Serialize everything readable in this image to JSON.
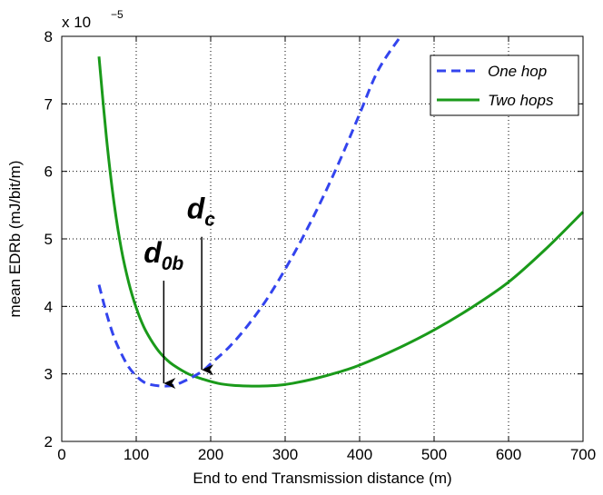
{
  "chart_data": {
    "type": "line",
    "xlabel": "End to end Transmission distance (m)",
    "ylabel": "mean EDRb (mJ/bit/m)",
    "y_scale_base": "x 10",
    "y_scale_exponent": "−5",
    "xlim": [
      0,
      700
    ],
    "ylim": [
      2,
      8
    ],
    "xticks": [
      0,
      100,
      200,
      300,
      400,
      500,
      600,
      700
    ],
    "yticks": [
      2,
      3,
      4,
      5,
      6,
      7,
      8
    ],
    "x_tick_labels": [
      "0",
      "100",
      "200",
      "300",
      "400",
      "500",
      "600",
      "700"
    ],
    "y_tick_labels": [
      "2",
      "3",
      "4",
      "5",
      "6",
      "7",
      "8"
    ],
    "grid": true,
    "legend_position": "top-right",
    "series": [
      {
        "name": "One hop",
        "color": "#3344ee",
        "style": "dashed",
        "x": [
          50,
          60,
          70,
          80,
          90,
          100,
          110,
          120,
          135,
          150,
          160,
          175,
          190,
          200,
          225,
          250,
          275,
          300,
          325,
          350,
          375,
          400,
          425,
          455
        ],
        "y": [
          4.32,
          3.9,
          3.55,
          3.3,
          3.1,
          2.97,
          2.88,
          2.84,
          2.82,
          2.83,
          2.87,
          2.95,
          3.05,
          3.15,
          3.4,
          3.72,
          4.1,
          4.55,
          5.05,
          5.6,
          6.2,
          6.85,
          7.5,
          8.0
        ]
      },
      {
        "name": "Two hops",
        "color": "#1a9a1a",
        "style": "solid",
        "x": [
          50,
          60,
          70,
          80,
          90,
          100,
          110,
          120,
          130,
          140,
          150,
          170,
          190,
          210,
          230,
          250,
          270,
          290,
          310,
          340,
          370,
          400,
          450,
          500,
          550,
          600,
          650,
          700
        ],
        "y": [
          7.7,
          6.5,
          5.55,
          4.85,
          4.35,
          3.98,
          3.7,
          3.5,
          3.34,
          3.22,
          3.13,
          3.0,
          2.92,
          2.86,
          2.83,
          2.82,
          2.82,
          2.83,
          2.86,
          2.93,
          3.02,
          3.13,
          3.37,
          3.65,
          3.98,
          4.36,
          4.85,
          5.4
        ]
      }
    ],
    "annotations": [
      {
        "main": "d",
        "sub": "0b",
        "target_x": 137,
        "target_y": 2.82,
        "text_x": 110,
        "text_y": 4.65
      },
      {
        "main": "d",
        "sub": "c",
        "target_x": 188,
        "target_y": 3.02,
        "text_x": 168,
        "text_y": 5.3
      }
    ]
  }
}
